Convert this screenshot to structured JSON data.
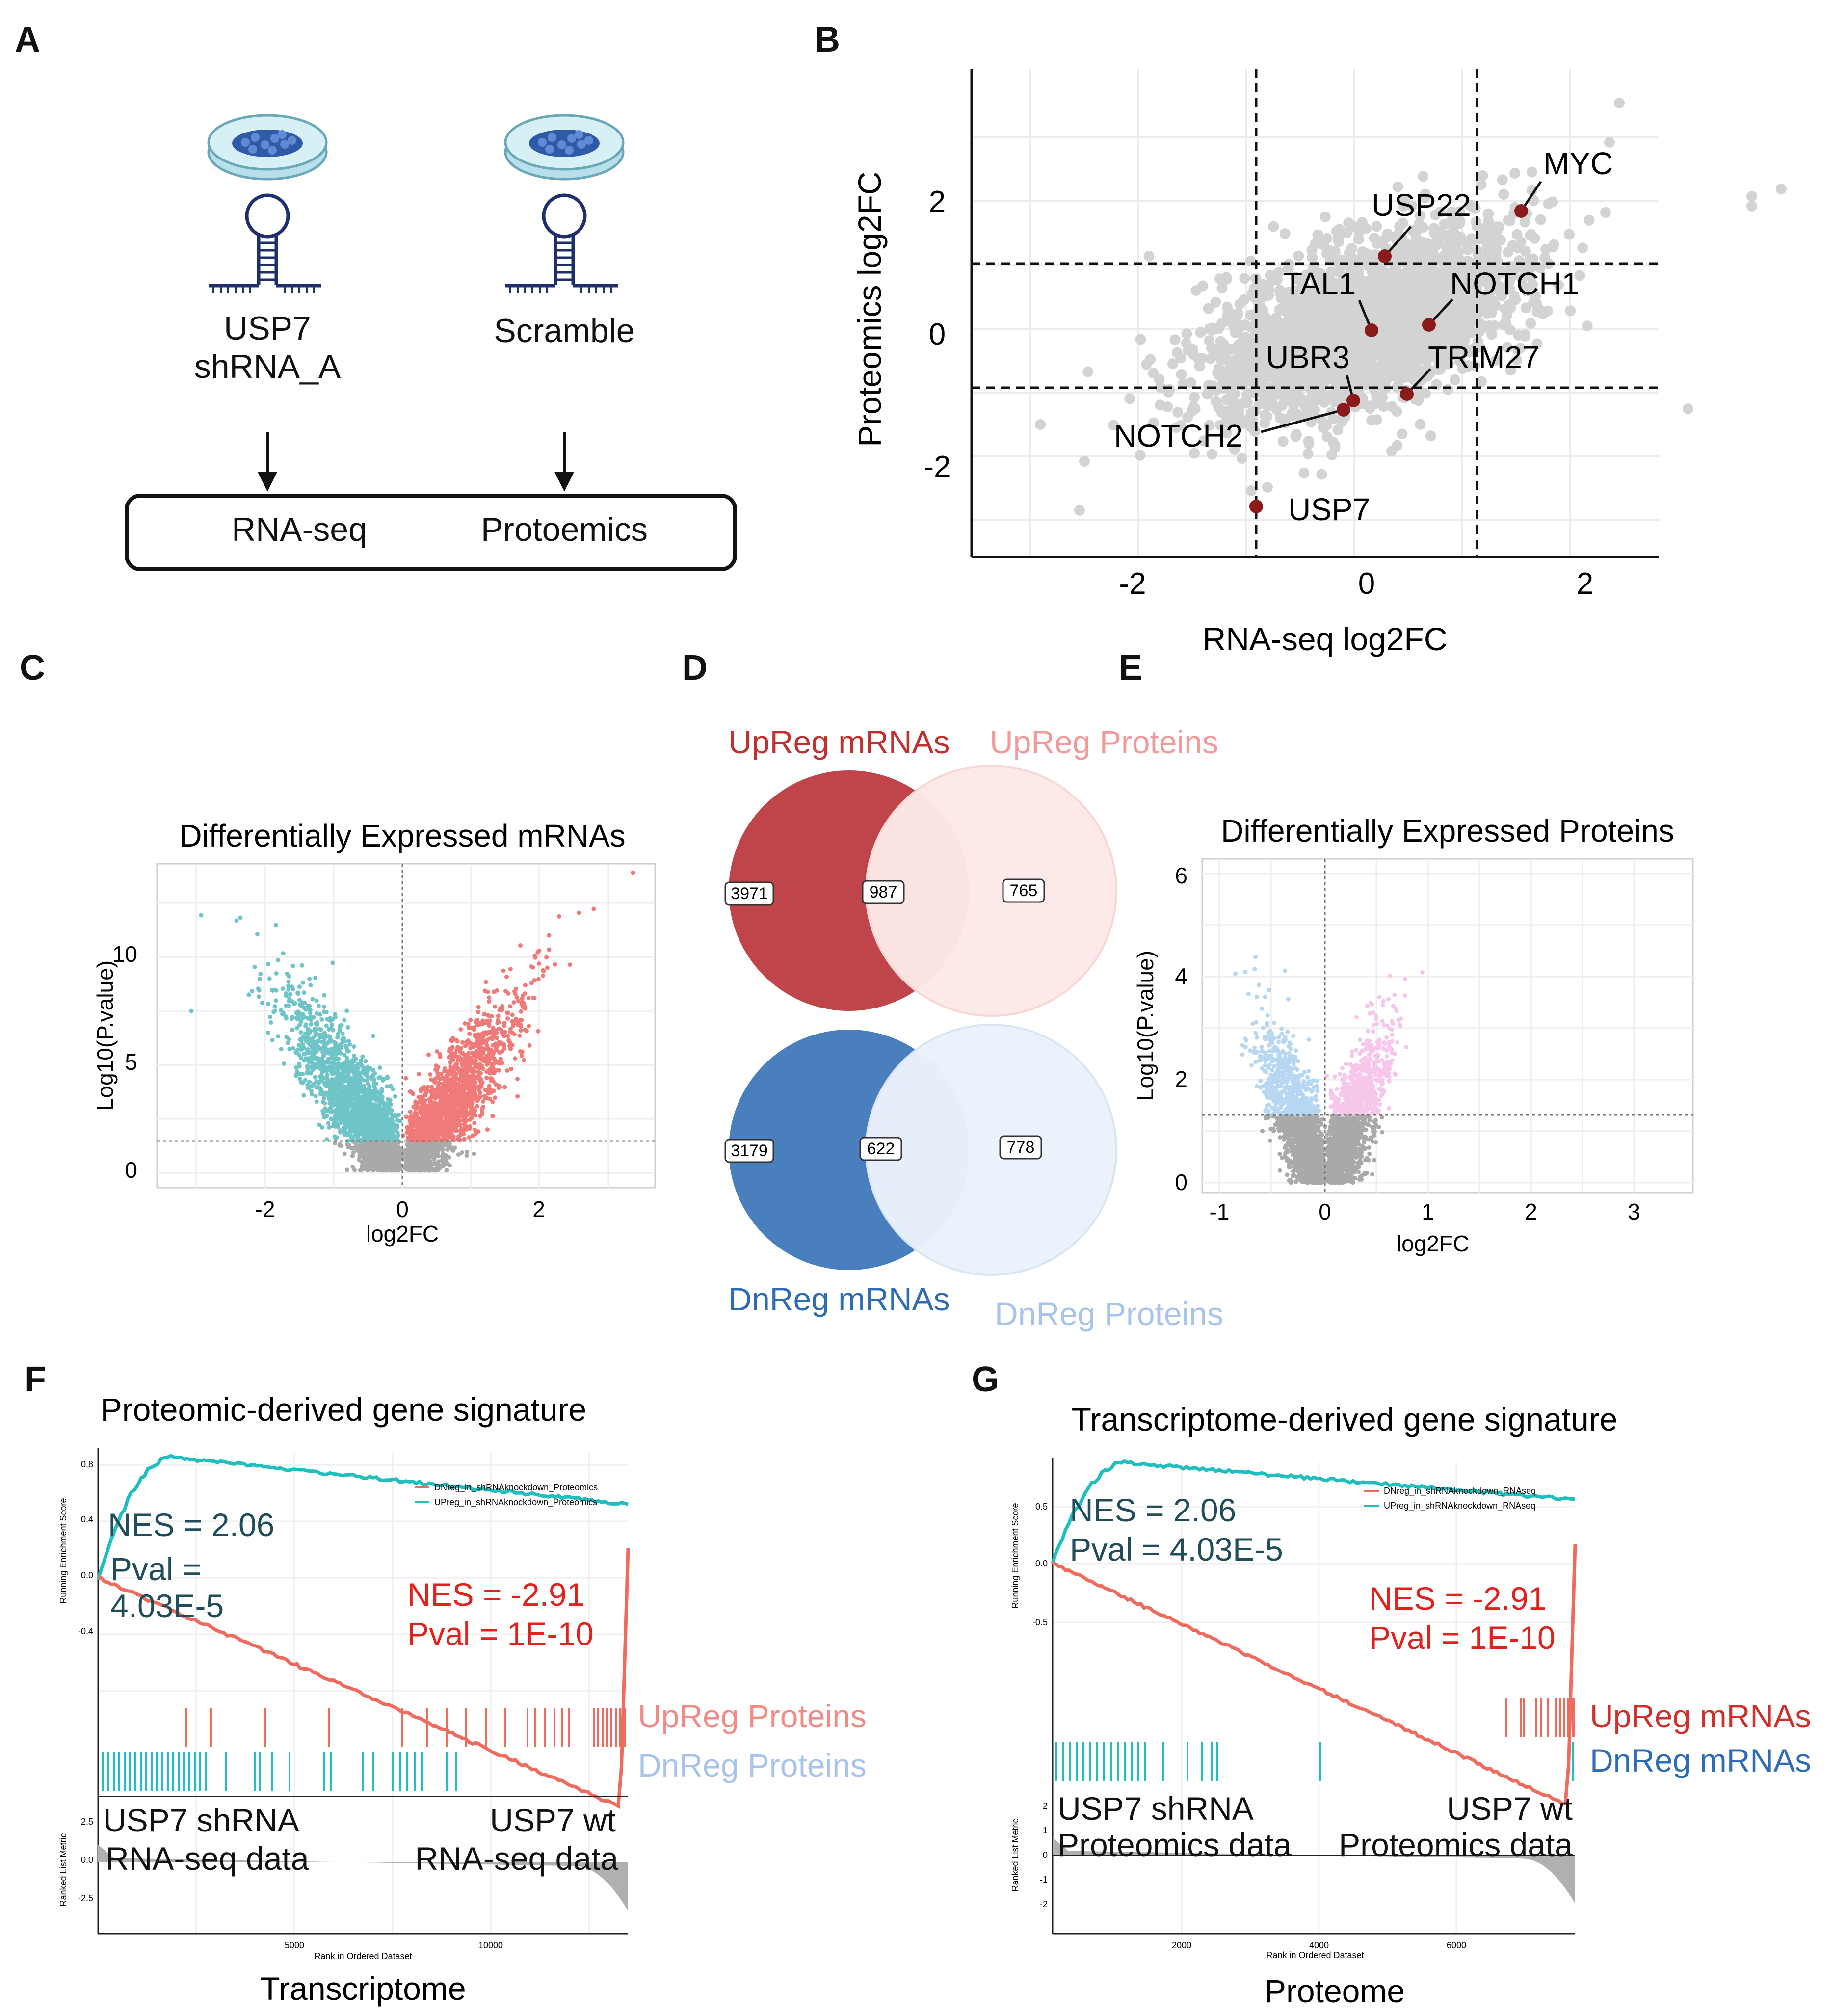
{
  "panels": {
    "a": "A",
    "b": "B",
    "c": "C",
    "d": "D",
    "e": "E",
    "f": "F",
    "g": "G"
  },
  "panelA": {
    "left_label_line1": "USP7",
    "left_label_line2": "shRNA_A",
    "right_label": "Scramble",
    "box_left": "RNA-seq",
    "box_right": "Protoemics"
  },
  "panelB": {
    "ylabel": "Proteomics log2FC",
    "xlabel": "RNA-seq log2FC",
    "xticks": [
      "-2",
      "0",
      "2"
    ],
    "yticks": [
      "2",
      "0",
      "-2"
    ],
    "genes": [
      "MYC",
      "USP22",
      "TAL1",
      "NOTCH1",
      "UBR3",
      "TRIM27",
      "NOTCH2",
      "USP7"
    ]
  },
  "panelC": {
    "title": "Differentially Expressed mRNAs",
    "ylabel": "Log10(P.value)",
    "xlabel": "log2FC",
    "xticks": [
      "-2",
      "0",
      "2"
    ],
    "yticks": [
      "10",
      "5",
      "0"
    ]
  },
  "panelD": {
    "up_mrna_label": "UpReg mRNAs",
    "up_protein_label": "UpReg Proteins",
    "dn_mrna_label": "DnReg mRNAs",
    "dn_protein_label": "DnReg Proteins",
    "up_left": "3971",
    "up_mid": "987",
    "up_right": "765",
    "dn_left": "3179",
    "dn_mid": "622",
    "dn_right": "778"
  },
  "panelE": {
    "title": "Differentially Expressed Proteins",
    "ylabel": "Log10(P.value)",
    "xlabel": "log2FC",
    "xticks": [
      "-1",
      "0",
      "1",
      "2",
      "3"
    ],
    "yticks": [
      "6",
      "4",
      "2",
      "0"
    ]
  },
  "panelF": {
    "title": "Proteomic-derived gene signature",
    "ylabel_top": "Running Enrichment Score",
    "ylabel_bottom": "Ranked List Metric",
    "xlabel_small": "Rank in Ordered Dataset",
    "xlabel_big": "Transcriptome",
    "legend1": "DNreg_in_shRNAknockdown_Proteomics",
    "legend2": "UPreg_in_shRNAknockdown_Proteomics",
    "nes_up": "NES = 2.06",
    "pval_up_1": "Pval =",
    "pval_up_2": "4.03E-5",
    "nes_dn": "NES = -2.91",
    "pval_dn": "Pval = 1E-10",
    "up_label": "UpReg Proteins",
    "dn_label": "DnReg Proteins",
    "left_note_1": "USP7 shRNA",
    "left_note_2": "RNA-seq data",
    "right_note_1": "USP7 wt",
    "right_note_2": "RNA-seq data",
    "yticks_top": [
      "0.8",
      "0.4",
      "0.0",
      "-0.4"
    ],
    "yticks_bottom": [
      "2.5",
      "0.0",
      "-2.5"
    ],
    "xticks": [
      "5000",
      "10000"
    ]
  },
  "panelG": {
    "title": "Transcriptome-derived gene signature",
    "ylabel_top": "Running Enrichment Score",
    "ylabel_bottom": "Ranked List Metric",
    "xlabel_small": "Rank in Ordered Dataset",
    "xlabel_big": "Proteome",
    "legend1": "DNreg_in_shRNAknockdown_RNAseq",
    "legend2": "UPreg_in_shRNAknockdown_RNAseq",
    "nes_up": "NES = 2.06",
    "pval_up": "Pval = 4.03E-5",
    "nes_dn": "NES = -2.91",
    "pval_dn": "Pval = 1E-10",
    "up_label": "UpReg mRNAs",
    "dn_label": "DnReg mRNAs",
    "left_note_1": "USP7 shRNA",
    "left_note_2": "Proteomics data",
    "right_note_1": "USP7 wt",
    "right_note_2": "Proteomics data",
    "yticks_top": [
      "0.5",
      "0.0",
      "-0.5"
    ],
    "yticks_bottom": [
      "2",
      "1",
      "0",
      "-1",
      "-2"
    ],
    "xticks": [
      "2000",
      "4000",
      "6000"
    ]
  }
}
